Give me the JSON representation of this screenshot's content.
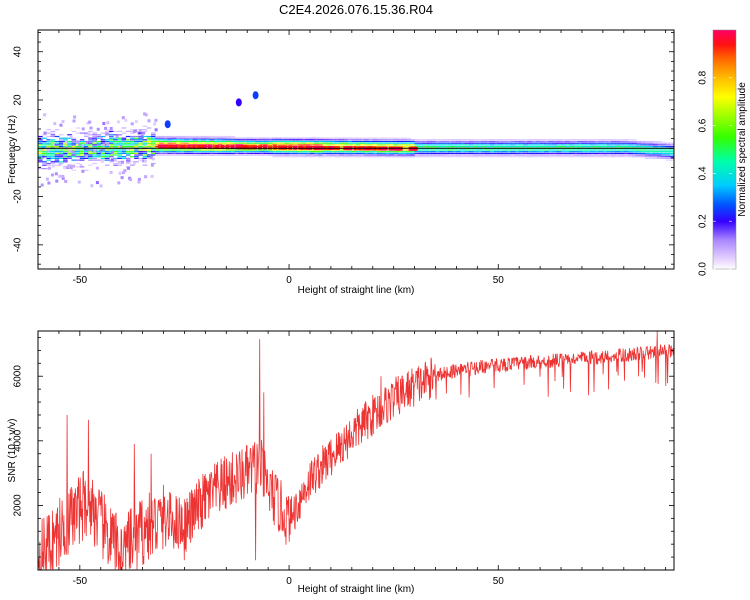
{
  "figure": {
    "title": "C2E4.2026.076.15.36.R04"
  },
  "chart_data": [
    {
      "type": "heatmap",
      "title": "C2E4.2026.076.15.36.R04",
      "xlabel": "Height of straight line (km)",
      "ylabel": "Frequency (Hz)",
      "xlim": [
        -60,
        92
      ],
      "ylim": [
        -50,
        49
      ],
      "x_ticks": [
        -50,
        0,
        50
      ],
      "x_tick_labels": [
        "-50",
        "0",
        "50"
      ],
      "y_ticks": [
        40,
        20,
        0,
        -20,
        -40
      ],
      "y_tick_labels": [
        "40",
        "20",
        "0",
        "-20",
        "-40"
      ],
      "colorbar": {
        "label": "Normalized spectral amplitude",
        "range": [
          0,
          1
        ],
        "ticks": [
          0,
          0.2,
          0.4,
          0.6,
          0.8
        ],
        "tick_labels": [
          "0.0",
          "0.2",
          "0.4",
          "0.6",
          "0.8"
        ]
      },
      "band_center_hz": [
        {
          "x": -60,
          "f": -1
        },
        {
          "x": -45,
          "f": 0
        },
        {
          "x": -32,
          "f": 1
        },
        {
          "x": 0,
          "f": 0.5
        },
        {
          "x": 30,
          "f": 0
        },
        {
          "x": 60,
          "f": 0
        },
        {
          "x": 80,
          "f": 0
        },
        {
          "x": 92,
          "f": -1.5
        }
      ],
      "band_sections": [
        {
          "x0": -60,
          "x1": -32,
          "halfwidth_hz": 5,
          "peak": 0.55
        },
        {
          "x0": -32,
          "x1": 8,
          "halfwidth_hz": 3,
          "peak": 0.98
        },
        {
          "x0": 8,
          "x1": 30,
          "halfwidth_hz": 3,
          "peak": 0.85
        },
        {
          "x0": 30,
          "x1": 92,
          "halfwidth_hz": 3,
          "peak": 0.5
        }
      ],
      "outlier_blobs": [
        {
          "x": -8,
          "f": 22,
          "amp": 0.1
        },
        {
          "x": -12,
          "f": 19,
          "amp": 0.05
        },
        {
          "x": -29,
          "f": 10,
          "amp": 0.1
        }
      ]
    },
    {
      "type": "line",
      "xlabel": "Height of straight line (km)",
      "ylabel": "SNR (10 * v/v)",
      "xlim": [
        -60,
        92
      ],
      "ylim": [
        0,
        7400
      ],
      "x_ticks": [
        -50,
        0,
        50
      ],
      "x_tick_labels": [
        "-50",
        "0",
        "50"
      ],
      "y_ticks": [
        2000,
        4000,
        6000
      ],
      "y_tick_labels": [
        "2000",
        "4000",
        "6000"
      ],
      "color": "#ee3333",
      "trend": [
        {
          "x": -60,
          "y": 400
        },
        {
          "x": -52,
          "y": 1600
        },
        {
          "x": -48,
          "y": 2200
        },
        {
          "x": -45,
          "y": 1400
        },
        {
          "x": -40,
          "y": 500
        },
        {
          "x": -35,
          "y": 1200
        },
        {
          "x": -30,
          "y": 1600
        },
        {
          "x": -25,
          "y": 1400
        },
        {
          "x": -20,
          "y": 2200
        },
        {
          "x": -15,
          "y": 2700
        },
        {
          "x": -10,
          "y": 3000
        },
        {
          "x": -7,
          "y": 3300
        },
        {
          "x": -5,
          "y": 2500
        },
        {
          "x": 0,
          "y": 1500
        },
        {
          "x": 5,
          "y": 2800
        },
        {
          "x": 10,
          "y": 3500
        },
        {
          "x": 15,
          "y": 4200
        },
        {
          "x": 20,
          "y": 4800
        },
        {
          "x": 25,
          "y": 5300
        },
        {
          "x": 30,
          "y": 5700
        },
        {
          "x": 35,
          "y": 6000
        },
        {
          "x": 40,
          "y": 6200
        },
        {
          "x": 50,
          "y": 6350
        },
        {
          "x": 60,
          "y": 6450
        },
        {
          "x": 70,
          "y": 6550
        },
        {
          "x": 80,
          "y": 6650
        },
        {
          "x": 92,
          "y": 6800
        }
      ],
      "spikes": [
        {
          "x": -7,
          "y": 7150
        },
        {
          "x": -8,
          "y": 300
        },
        {
          "x": -6,
          "y": 5500
        },
        {
          "x": -53,
          "y": 4800
        },
        {
          "x": -48,
          "y": 4650
        },
        {
          "x": -37,
          "y": 3900
        },
        {
          "x": -33,
          "y": 3600
        },
        {
          "x": -25,
          "y": 300
        },
        {
          "x": 22,
          "y": 6000
        },
        {
          "x": 88,
          "y": 7400
        },
        {
          "x": 90,
          "y": 5700
        }
      ]
    }
  ]
}
